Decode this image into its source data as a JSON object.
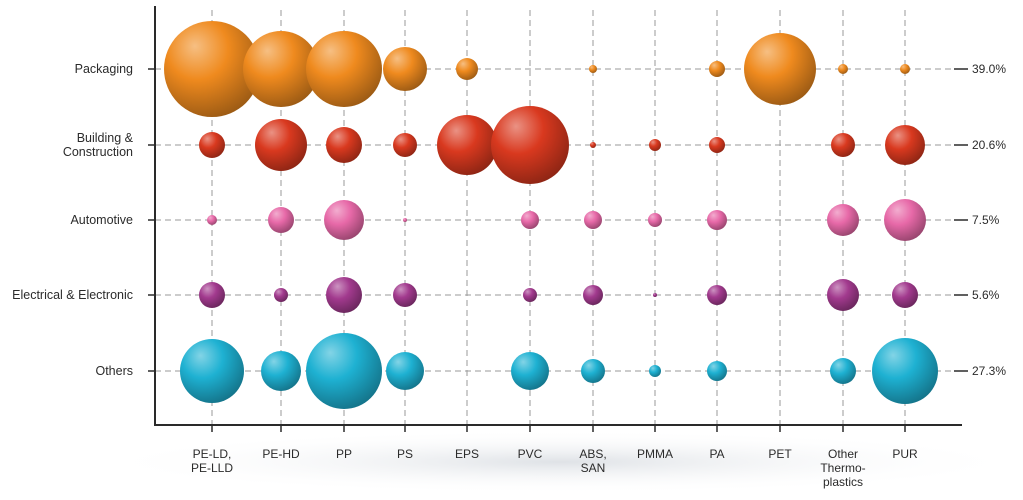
{
  "chart_data": {
    "type": "bubble",
    "title": "",
    "xlabel": "",
    "ylabel": "",
    "categories": [
      [
        "PE-LD,",
        "PE-LLD"
      ],
      [
        "PE-HD"
      ],
      [
        "PP"
      ],
      [
        "PS"
      ],
      [
        "EPS"
      ],
      [
        "PVC"
      ],
      [
        "ABS,",
        "SAN"
      ],
      [
        "PMMA"
      ],
      [
        "PA"
      ],
      [
        "PET"
      ],
      [
        "Other",
        "Thermo-",
        "plastics"
      ],
      [
        "PUR"
      ]
    ],
    "series": [
      {
        "name": "Packaging",
        "label_lines": [
          "Packaging"
        ],
        "share": "39.0%",
        "color": "#ef8a1e",
        "values": [
          48,
          38,
          38,
          22,
          11,
          0,
          4,
          0,
          8,
          36,
          5,
          5
        ]
      },
      {
        "name": "Building & Construction",
        "label_lines": [
          "Building &",
          "Construction"
        ],
        "share": "20.6%",
        "color": "#d9391f",
        "values": [
          13,
          26,
          18,
          12,
          30,
          39,
          3,
          6,
          8,
          0,
          12,
          20
        ]
      },
      {
        "name": "Automotive",
        "label_lines": [
          "Automotive"
        ],
        "share": "7.5%",
        "color": "#e769a8",
        "values": [
          5,
          13,
          20,
          2,
          0,
          9,
          9,
          7,
          10,
          0,
          16,
          21
        ]
      },
      {
        "name": "Electrical & Electronic",
        "label_lines": [
          "Electrical & Electronic"
        ],
        "share": "5.6%",
        "color": "#a23a8e",
        "values": [
          13,
          7,
          18,
          12,
          0,
          7,
          10,
          2,
          10,
          0,
          16,
          13
        ]
      },
      {
        "name": "Others",
        "label_lines": [
          "Others"
        ],
        "share": "27.3%",
        "color": "#1eb1d2",
        "values": [
          32,
          20,
          38,
          19,
          0,
          19,
          12,
          6,
          10,
          0,
          13,
          33
        ]
      }
    ],
    "grid": true,
    "legend": "none"
  }
}
